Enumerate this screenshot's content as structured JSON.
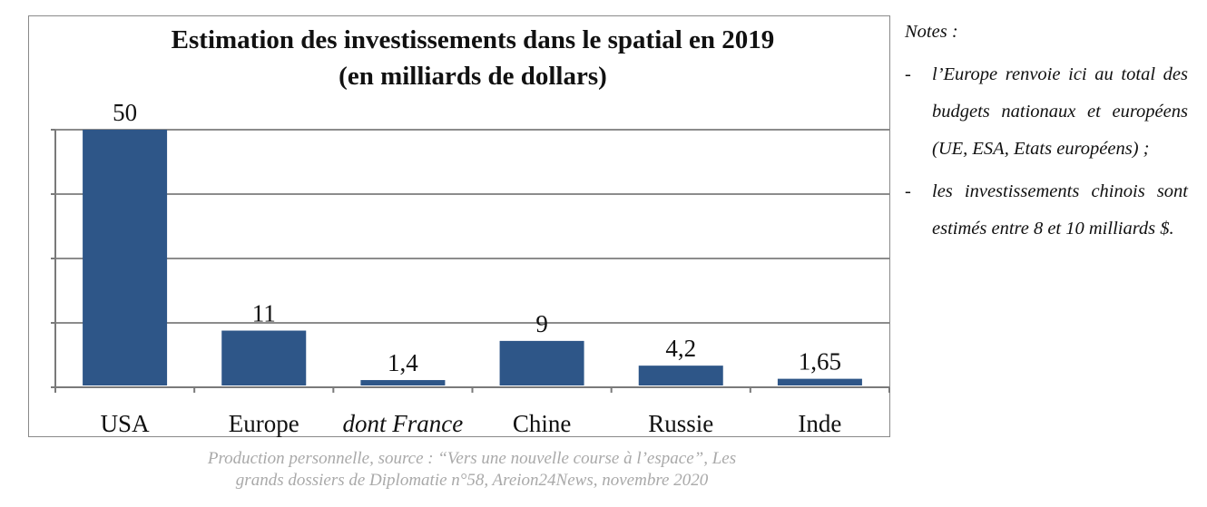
{
  "chart_data": {
    "type": "bar",
    "title": "Estimation des investissements dans le spatial en 2019",
    "subtitle": "(en milliards de dollars)",
    "categories": [
      "USA",
      "Europe",
      "dont France",
      "Chine",
      "Russie",
      "Inde"
    ],
    "italic_categories": [
      "dont France"
    ],
    "values": [
      50,
      11,
      1.4,
      9,
      4.2,
      1.65
    ],
    "value_labels": [
      "50",
      "11",
      "1,4",
      "9",
      "4,2",
      "1,65"
    ],
    "ylim": [
      0,
      50
    ],
    "y_gridlines": [
      0,
      12.5,
      25,
      37.5,
      50
    ],
    "grid": true,
    "show_y_tick_labels": false,
    "bar_color": "#2e5688",
    "xlabel": "",
    "ylabel": ""
  },
  "source": {
    "line1": "Production personnelle, source : “Vers une nouvelle course à l’espace”, Les",
    "line2": "grands dossiers de Diplomatie n°58, Areion24News, novembre 2020"
  },
  "notes": {
    "title": "Notes :",
    "items": [
      {
        "dash": "-",
        "text": "l’Europe renvoie ici au total des budgets nationaux et européens (UE, ESA, Etats européens) ;"
      },
      {
        "dash": "-",
        "text": "les investissements chinois sont estimés entre 8 et 10 milliards $."
      }
    ]
  }
}
